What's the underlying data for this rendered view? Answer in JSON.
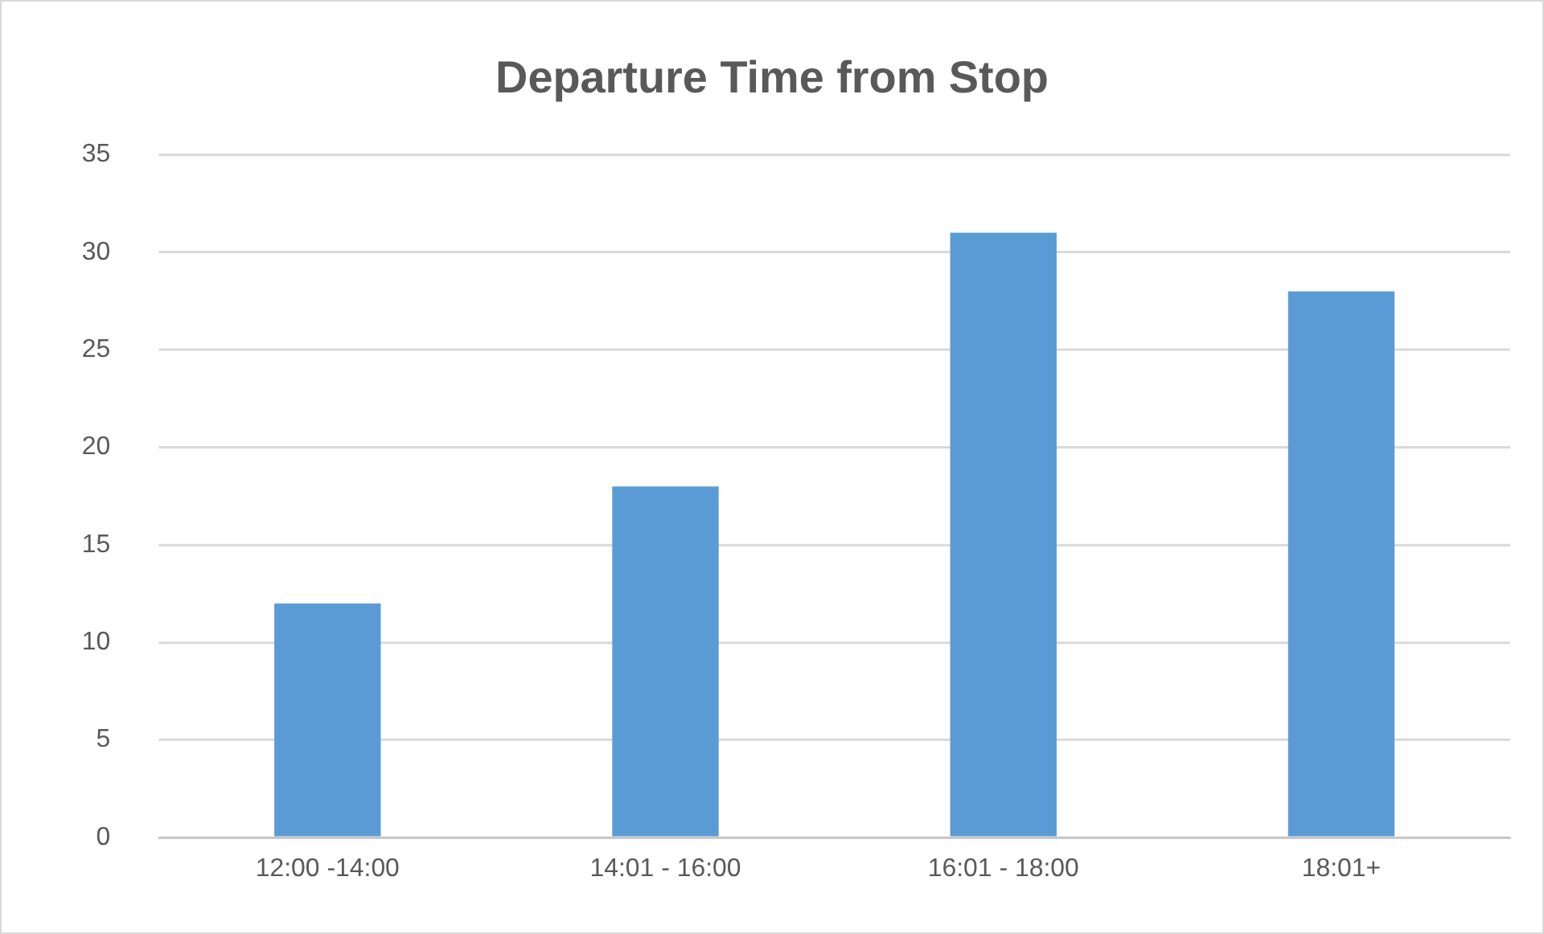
{
  "chart_data": {
    "type": "bar",
    "title": "Departure Time from Stop",
    "categories": [
      "12:00 -14:00",
      "14:01 - 16:00",
      "16:01 - 18:00",
      "18:01+"
    ],
    "values": [
      12,
      18,
      31,
      28
    ],
    "color": "#5b9bd5",
    "ylim": [
      0,
      35
    ],
    "yticks": [
      0,
      5,
      10,
      15,
      20,
      25,
      30,
      35
    ],
    "grid": "y"
  }
}
